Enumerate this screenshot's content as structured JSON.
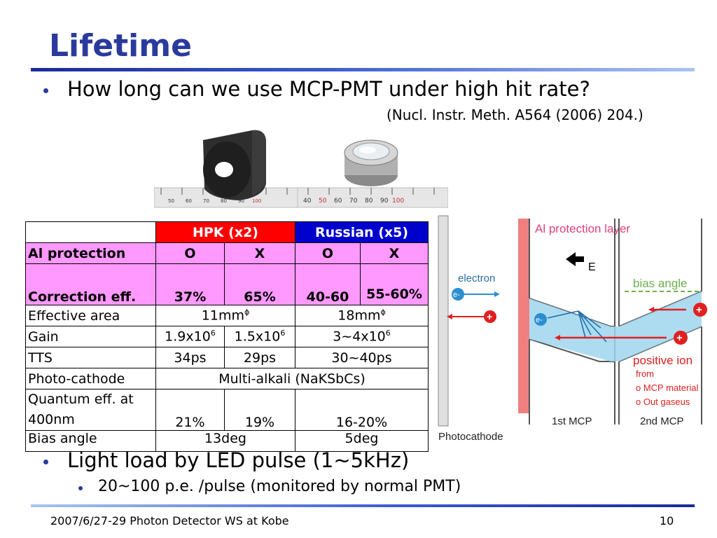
{
  "title": "Lifetime",
  "bullet1": "How long can we use MCP-PMT under high hit rate?",
  "reference": "(Nucl. Instr. Meth. A564 (2006) 204.)",
  "photo_ruler_left": [
    "50",
    "60",
    "70",
    "80",
    "90",
    "100"
  ],
  "photo_ruler_right": [
    "40",
    "50",
    "60",
    "70",
    "80",
    "90",
    "100"
  ],
  "table": {
    "header_hpk": "HPK  (x2)",
    "header_russian": "Russian  (x5)",
    "rows": {
      "al_protection": {
        "label": "Al protection",
        "hpk1": "O",
        "hpk2": "X",
        "rus1": "O",
        "rus2": "X"
      },
      "correction": {
        "label": "Correction eff.",
        "hpk1": "37%",
        "hpk2": "65%",
        "rus1": "40-60",
        "rus2": "55-60%"
      },
      "effective_area": {
        "label": "Effective area",
        "hpk": "11mm",
        "rus": "18mm",
        "symbol": "ϕ"
      },
      "gain": {
        "label": "Gain",
        "hpk1": "1.9x10",
        "hpk2": "1.5x10",
        "rus": "3~4x10",
        "exp": "6"
      },
      "tts": {
        "label": "TTS",
        "hpk1": "34ps",
        "hpk2": "29ps",
        "rus": "30~40ps"
      },
      "photocathode": {
        "label": "Photo-cathode",
        "value": "Multi-alkali (NaKSbCs)"
      },
      "quantum": {
        "label_line1": "Quantum eff. at",
        "label_line2": "400nm",
        "hpk1": "21%",
        "hpk2": "19%",
        "rus": "16-20%"
      },
      "bias": {
        "label": "Bias angle",
        "hpk": "13deg",
        "rus": "5deg"
      }
    }
  },
  "diagram": {
    "al_layer": "Al protection layer",
    "electron": "electron",
    "e_minus": "e-",
    "e_field": "E",
    "bias_angle": "bias angle",
    "positive_ion": "positive ion",
    "from": "from",
    "from_mcp": "o MCP material",
    "from_gas": "o Out gaseus",
    "first_mcp": "1st MCP",
    "second_mcp": "2nd MCP",
    "photocathode": "Photocathode",
    "colors": {
      "ion": "#e02020",
      "electron": "#2a8fd0",
      "layer": "#f08080"
    }
  },
  "bullet2": "Light load by LED pulse (1~5kHz)",
  "bullet3": "20~100 p.e. /pulse (monitored by normal PMT)",
  "footer": "2007/6/27-29 Photon Detector WS at Kobe",
  "page_number": "10"
}
